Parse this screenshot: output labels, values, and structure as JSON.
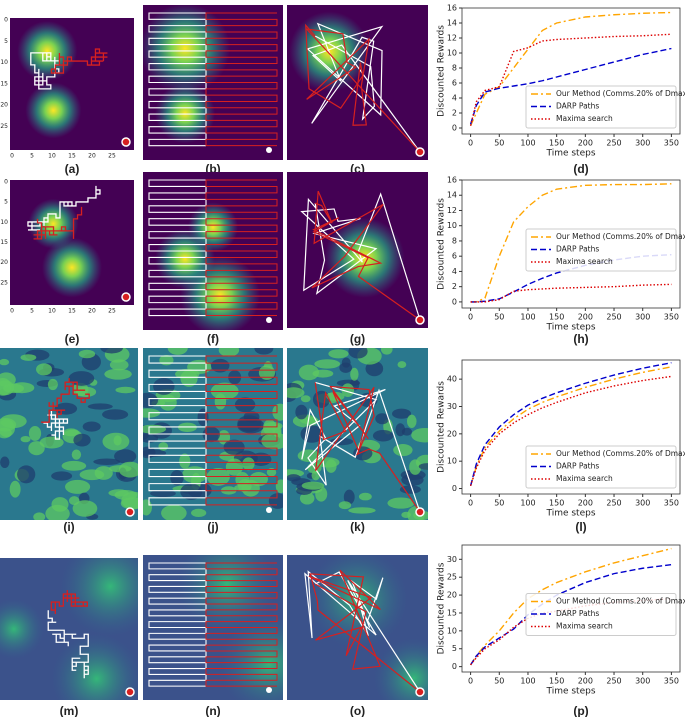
{
  "map_panels": [
    "(a)",
    "(b)",
    "(c)",
    "(e)",
    "(f)",
    "(g)",
    "(i)",
    "(j)",
    "(k)",
    "(m)",
    "(n)",
    "(o)"
  ],
  "map_ticks": [
    0,
    5,
    10,
    15,
    20,
    25
  ],
  "chart_data": [
    {
      "type": "line",
      "caption": "(d)",
      "xlabel": "Time steps",
      "ylabel": "Discounted Rewards",
      "x": [
        0,
        10,
        25,
        50,
        75,
        100,
        125,
        150,
        200,
        250,
        300,
        350
      ],
      "xlim": [
        -15,
        365
      ],
      "xticks": [
        0,
        50,
        100,
        150,
        200,
        250,
        300,
        350
      ],
      "ylim": [
        -0.8,
        16
      ],
      "yticks": [
        0,
        2,
        4,
        6,
        8,
        10,
        12,
        14,
        16
      ],
      "legend": "lower right",
      "series": [
        {
          "name": "Our Method (Comms.20% of Dmax)",
          "color": "#ffa500",
          "linestyle": "dashdot",
          "values": [
            0.3,
            2,
            4.5,
            5.5,
            8,
            10.5,
            13,
            14,
            14.8,
            15.1,
            15.3,
            15.4
          ]
        },
        {
          "name": "DARP Paths",
          "color": "#0000cc",
          "linestyle": "dashed",
          "values": [
            0.5,
            3,
            4.8,
            5.3,
            5.6,
            5.9,
            6.3,
            6.8,
            7.8,
            8.8,
            9.8,
            10.6
          ]
        },
        {
          "name": "Maxima search",
          "color": "#dd0000",
          "linestyle": "dotted",
          "values": [
            0.3,
            3.5,
            5,
            5.5,
            10.2,
            10.7,
            11.6,
            11.8,
            12,
            12.2,
            12.3,
            12.5
          ]
        }
      ]
    },
    {
      "type": "line",
      "caption": "(h)",
      "xlabel": "Time steps",
      "ylabel": "Discounted Rewards",
      "x": [
        0,
        10,
        25,
        50,
        75,
        100,
        125,
        150,
        200,
        250,
        300,
        350
      ],
      "xlim": [
        -15,
        365
      ],
      "xticks": [
        0,
        50,
        100,
        150,
        200,
        250,
        300,
        350
      ],
      "ylim": [
        -0.8,
        16
      ],
      "yticks": [
        0,
        2,
        4,
        6,
        8,
        10,
        12,
        14,
        16
      ],
      "legend": "center right",
      "series": [
        {
          "name": "Our Method (Comms.20% of Dmax)",
          "color": "#ffa500",
          "linestyle": "dashdot",
          "values": [
            0,
            0,
            0.5,
            6,
            10.5,
            12.5,
            14,
            14.8,
            15.3,
            15.4,
            15.4,
            15.5
          ]
        },
        {
          "name": "DARP Paths",
          "color": "#0000cc",
          "linestyle": "dashed",
          "values": [
            0,
            0,
            0.1,
            0.4,
            1.3,
            2.3,
            3.1,
            3.8,
            4.8,
            5.5,
            6,
            6.2
          ]
        },
        {
          "name": "Maxima search",
          "color": "#dd0000",
          "linestyle": "dotted",
          "values": [
            0,
            0,
            0,
            0.3,
            1.4,
            1.6,
            1.7,
            1.8,
            1.9,
            2,
            2.2,
            2.3
          ]
        }
      ]
    },
    {
      "type": "line",
      "caption": "(l)",
      "xlabel": "Time steps",
      "ylabel": "Discounted Rewards",
      "x": [
        0,
        10,
        25,
        50,
        75,
        100,
        125,
        150,
        200,
        250,
        300,
        350
      ],
      "xlim": [
        -15,
        365
      ],
      "xticks": [
        0,
        50,
        100,
        150,
        200,
        250,
        300,
        350
      ],
      "ylim": [
        -2,
        47
      ],
      "yticks": [
        0,
        10,
        20,
        30,
        40
      ],
      "legend": "lower right",
      "series": [
        {
          "name": "Our Method (Comms.20% of Dmax)",
          "color": "#ffa500",
          "linestyle": "dashdot",
          "values": [
            1,
            8,
            15,
            21,
            25.5,
            29,
            31.5,
            33.5,
            37,
            40,
            42.5,
            44.5
          ]
        },
        {
          "name": "DARP Paths",
          "color": "#0000cc",
          "linestyle": "dashed",
          "values": [
            1,
            9,
            16,
            22.5,
            27,
            30.5,
            33,
            35,
            38.5,
            41.5,
            44,
            46
          ]
        },
        {
          "name": "Maxima search",
          "color": "#dd0000",
          "linestyle": "dotted",
          "values": [
            1,
            7.5,
            14,
            20,
            24,
            27,
            29.5,
            31.5,
            35,
            37.5,
            39.5,
            41
          ]
        }
      ]
    },
    {
      "type": "line",
      "caption": "(p)",
      "xlabel": "Time steps",
      "ylabel": "Discounted Rewards",
      "x": [
        0,
        10,
        25,
        50,
        75,
        100,
        125,
        150,
        200,
        250,
        300,
        350
      ],
      "xlim": [
        -15,
        365
      ],
      "xticks": [
        0,
        50,
        100,
        150,
        200,
        250,
        300,
        350
      ],
      "ylim": [
        -1.5,
        34
      ],
      "yticks": [
        0,
        5,
        10,
        15,
        20,
        25,
        30
      ],
      "legend": "center right",
      "series": [
        {
          "name": "Our Method (Comms.20% of Dmax)",
          "color": "#ffa500",
          "linestyle": "dashdot",
          "values": [
            0.5,
            3,
            6,
            10,
            15,
            19,
            21.5,
            23.5,
            26.5,
            29,
            31,
            33
          ]
        },
        {
          "name": "DARP Paths",
          "color": "#0000cc",
          "linestyle": "dashed",
          "values": [
            0.5,
            3,
            5.5,
            8,
            10.5,
            14.5,
            17.5,
            20,
            23.5,
            26,
            27.5,
            28.5
          ]
        },
        {
          "name": "Maxima search",
          "color": "#dd0000",
          "linestyle": "dotted",
          "values": [
            0.5,
            2.5,
            5,
            7.5,
            11,
            13.5,
            15,
            15.5,
            17,
            18,
            18.5,
            19
          ]
        }
      ]
    }
  ]
}
